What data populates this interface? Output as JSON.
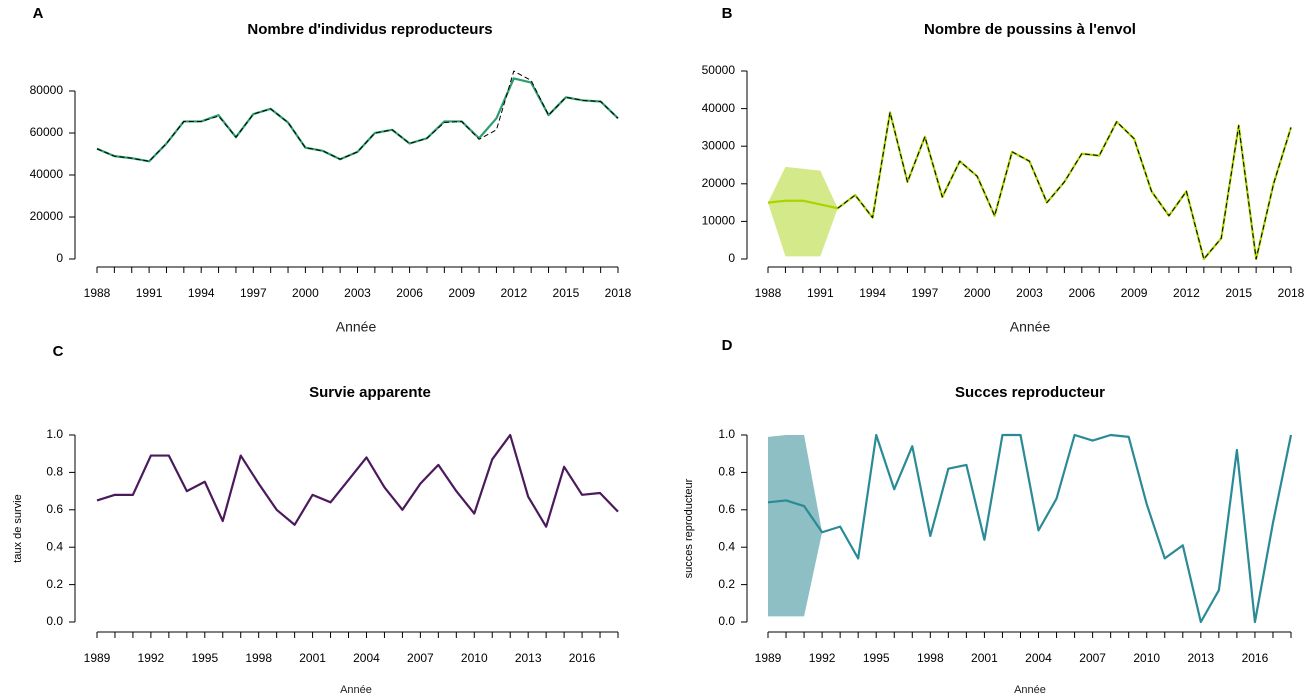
{
  "chart_data": [
    {
      "type": "line",
      "label": "A",
      "title": "Nombre d'individus reproducteurs",
      "x_label": "Année",
      "x": [
        1988,
        1989,
        1990,
        1991,
        1992,
        1993,
        1994,
        1995,
        1996,
        1997,
        1998,
        1999,
        2000,
        2001,
        2002,
        2003,
        2004,
        2005,
        2006,
        2007,
        2008,
        2009,
        2010,
        2011,
        2012,
        2013,
        2014,
        2015,
        2016,
        2017,
        2018
      ],
      "xlim": [
        1988,
        2018
      ],
      "xticks": [
        1988,
        1991,
        1994,
        1997,
        2000,
        2003,
        2006,
        2009,
        2012,
        2015,
        2018
      ],
      "ylim": [
        0,
        80000
      ],
      "yticks": [
        0,
        20000,
        40000,
        60000,
        80000
      ],
      "series": [
        {
          "color": "#2e9e6e",
          "dashed": false,
          "values": [
            52500,
            49000,
            48000,
            46500,
            55000,
            65500,
            65500,
            68500,
            58000,
            69000,
            71500,
            65000,
            53000,
            51500,
            47500,
            51000,
            60000,
            61500,
            55000,
            57500,
            65500,
            65500,
            57500,
            67000,
            86000,
            84000,
            68500,
            77000,
            75500,
            75000,
            67000
          ]
        },
        {
          "color": "#000000",
          "dashed": true,
          "values": [
            52500,
            49000,
            48000,
            46500,
            55000,
            65500,
            65500,
            68000,
            58000,
            69000,
            71500,
            65000,
            53000,
            51500,
            47500,
            51000,
            60000,
            61500,
            55000,
            57500,
            65000,
            65500,
            57000,
            61500,
            89500,
            85000,
            68500,
            77000,
            75500,
            75000,
            67000
          ]
        }
      ]
    },
    {
      "type": "line",
      "label": "B",
      "title": "Nombre de poussins à l'envol",
      "x_label": "Année",
      "x": [
        1988,
        1989,
        1990,
        1991,
        1992,
        1993,
        1994,
        1995,
        1996,
        1997,
        1998,
        1999,
        2000,
        2001,
        2002,
        2003,
        2004,
        2005,
        2006,
        2007,
        2008,
        2009,
        2010,
        2011,
        2012,
        2013,
        2014,
        2015,
        2016,
        2017,
        2018
      ],
      "xlim": [
        1988,
        2018
      ],
      "xticks": [
        1988,
        1991,
        1994,
        1997,
        2000,
        2003,
        2006,
        2009,
        2012,
        2015,
        2018
      ],
      "ylim": [
        0,
        50000
      ],
      "yticks": [
        0,
        10000,
        20000,
        30000,
        40000,
        50000
      ],
      "series": [
        {
          "color": "#a8d400",
          "dashed": false,
          "band_color": "#d4ea8a",
          "band_lower": [
            15000,
            700,
            700,
            700,
            13500,
            null,
            null,
            null,
            null,
            null,
            null,
            null,
            null,
            null,
            null,
            null,
            null,
            null,
            null,
            null,
            null,
            null,
            null,
            null,
            null,
            null,
            null,
            null,
            null,
            null,
            null
          ],
          "band_upper": [
            15000,
            24500,
            24000,
            23500,
            13500,
            null,
            null,
            null,
            null,
            null,
            null,
            null,
            null,
            null,
            null,
            null,
            null,
            null,
            null,
            null,
            null,
            null,
            null,
            null,
            null,
            null,
            null,
            null,
            null,
            null,
            null
          ],
          "values": [
            15000,
            15500,
            15500,
            14500,
            13500,
            17000,
            11000,
            39000,
            20500,
            32500,
            16500,
            26000,
            22000,
            11500,
            28500,
            26000,
            15000,
            20500,
            28000,
            27500,
            36500,
            32000,
            18000,
            11500,
            18000,
            0,
            5500,
            35500,
            0,
            20000,
            35000
          ]
        },
        {
          "color": "#000000",
          "dashed": true,
          "values": [
            null,
            null,
            null,
            null,
            13500,
            17000,
            11000,
            39000,
            20500,
            32500,
            16500,
            26000,
            22000,
            11500,
            28500,
            26000,
            15000,
            20500,
            28000,
            27500,
            36500,
            32000,
            18000,
            11500,
            18000,
            0,
            5500,
            35500,
            0,
            20000,
            35000
          ]
        }
      ]
    },
    {
      "type": "line",
      "label": "C",
      "title": "Survie apparente",
      "x_label": "Année",
      "y_label": "taux de survie",
      "x": [
        1989,
        1990,
        1991,
        1992,
        1993,
        1994,
        1995,
        1996,
        1997,
        1998,
        1999,
        2000,
        2001,
        2002,
        2003,
        2004,
        2005,
        2006,
        2007,
        2008,
        2009,
        2010,
        2011,
        2012,
        2013,
        2014,
        2015,
        2016,
        2017,
        2018
      ],
      "xlim": [
        1989,
        2018
      ],
      "xticks": [
        1989,
        1992,
        1995,
        1998,
        2001,
        2004,
        2007,
        2010,
        2013,
        2016
      ],
      "ylim": [
        0,
        1
      ],
      "yticks": [
        {
          "value": 0,
          "label": "0.0"
        },
        0.2,
        0.4,
        0.6,
        0.8,
        {
          "value": 1,
          "label": "1.0"
        }
      ],
      "series": [
        {
          "color": "#4b1a5c",
          "dashed": false,
          "values": [
            0.65,
            0.68,
            0.68,
            0.89,
            0.89,
            0.7,
            0.75,
            0.54,
            0.89,
            0.74,
            0.6,
            0.52,
            0.68,
            0.64,
            0.76,
            0.88,
            0.72,
            0.6,
            0.74,
            0.84,
            0.7,
            0.58,
            0.87,
            1.0,
            0.67,
            0.51,
            0.83,
            0.68,
            0.69,
            0.59
          ]
        }
      ]
    },
    {
      "type": "line",
      "label": "D",
      "title": "Succes reproducteur",
      "x_label": "Année",
      "y_label": "succes reproducteur",
      "x": [
        1989,
        1990,
        1991,
        1992,
        1993,
        1994,
        1995,
        1996,
        1997,
        1998,
        1999,
        2000,
        2001,
        2002,
        2003,
        2004,
        2005,
        2006,
        2007,
        2008,
        2009,
        2010,
        2011,
        2012,
        2013,
        2014,
        2015,
        2016,
        2017,
        2018
      ],
      "xlim": [
        1989,
        2018
      ],
      "xticks": [
        1989,
        1992,
        1995,
        1998,
        2001,
        2004,
        2007,
        2010,
        2013,
        2016
      ],
      "ylim": [
        0,
        1
      ],
      "yticks": [
        {
          "value": 0,
          "label": "0.0"
        },
        0.2,
        0.4,
        0.6,
        0.8,
        {
          "value": 1,
          "label": "1.0"
        }
      ],
      "series": [
        {
          "color": "#2a8a96",
          "dashed": false,
          "band_color": "#8dbfc4",
          "band_lower": [
            0.03,
            0.03,
            0.03,
            0.48,
            null,
            null,
            null,
            null,
            null,
            null,
            null,
            null,
            null,
            null,
            null,
            null,
            null,
            null,
            null,
            null,
            null,
            null,
            null,
            null,
            null,
            null,
            null,
            null,
            null,
            null
          ],
          "band_upper": [
            0.99,
            1.0,
            1.0,
            0.48,
            null,
            null,
            null,
            null,
            null,
            null,
            null,
            null,
            null,
            null,
            null,
            null,
            null,
            null,
            null,
            null,
            null,
            null,
            null,
            null,
            null,
            null,
            null,
            null,
            null,
            null
          ],
          "values": [
            0.64,
            0.65,
            0.62,
            0.48,
            0.51,
            0.34,
            1.0,
            0.71,
            0.94,
            0.46,
            0.82,
            0.84,
            0.44,
            1.0,
            1.0,
            0.49,
            0.66,
            1.0,
            0.97,
            1.0,
            0.99,
            0.63,
            0.34,
            0.41,
            0.0,
            0.17,
            0.92,
            0.0,
            0.53,
            1.0
          ]
        }
      ]
    }
  ]
}
